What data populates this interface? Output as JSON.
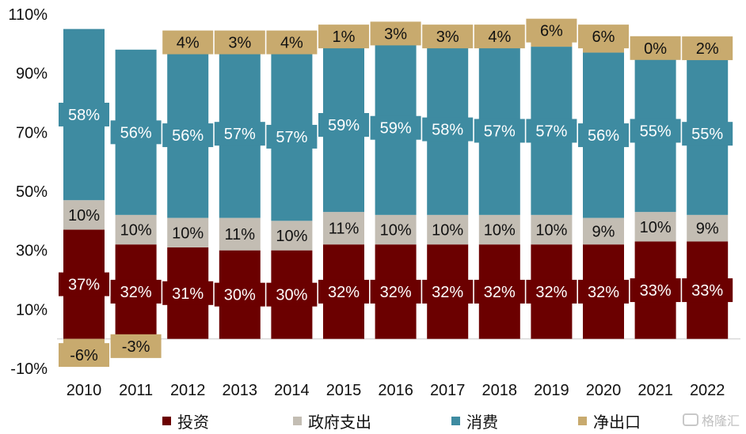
{
  "chart_data": {
    "type": "bar",
    "stacked": true,
    "categories": [
      "2010",
      "2011",
      "2012",
      "2013",
      "2014",
      "2015",
      "2016",
      "2017",
      "2018",
      "2019",
      "2020",
      "2021",
      "2022"
    ],
    "series": [
      {
        "name": "投资",
        "color": "#6b0000",
        "label_color": "#ffffff",
        "values": [
          37,
          32,
          31,
          30,
          30,
          32,
          32,
          32,
          32,
          32,
          32,
          33,
          33
        ],
        "labels": [
          "37%",
          "32%",
          "31%",
          "30%",
          "30%",
          "32%",
          "32%",
          "32%",
          "32%",
          "32%",
          "32%",
          "33%",
          "33%"
        ]
      },
      {
        "name": "政府支出",
        "color": "#c3bdb3",
        "label_color": "#111111",
        "values": [
          10,
          10,
          10,
          11,
          10,
          11,
          10,
          10,
          10,
          10,
          9,
          10,
          9
        ],
        "labels": [
          "10%",
          "10%",
          "10%",
          "11%",
          "10%",
          "11%",
          "10%",
          "10%",
          "10%",
          "10%",
          "9%",
          "10%",
          "9%"
        ]
      },
      {
        "name": "消费",
        "color": "#3e8ba1",
        "label_color": "#ffffff",
        "values": [
          58,
          56,
          56,
          57,
          57,
          59,
          59,
          58,
          57,
          57,
          56,
          55,
          55
        ],
        "labels": [
          "58%",
          "56%",
          "56%",
          "57%",
          "57%",
          "59%",
          "59%",
          "58%",
          "57%",
          "57%",
          "56%",
          "55%",
          "55%"
        ]
      },
      {
        "name": "净出口",
        "color": "#c8aa6e",
        "label_color": "#111111",
        "values": [
          -6,
          -3,
          4,
          3,
          4,
          1,
          3,
          3,
          4,
          6,
          6,
          0,
          2
        ],
        "labels": [
          "-6%",
          "-3%",
          "4%",
          "3%",
          "4%",
          "1%",
          "3%",
          "3%",
          "4%",
          "6%",
          "6%",
          "0%",
          "2%"
        ]
      }
    ],
    "y_ticks": [
      "110%",
      "90%",
      "70%",
      "50%",
      "30%",
      "10%",
      "-10%"
    ],
    "ylim": [
      -10,
      110
    ],
    "grid": false,
    "legend_position": "bottom",
    "title": "",
    "xlabel": "",
    "ylabel": ""
  },
  "watermark": "格隆汇"
}
